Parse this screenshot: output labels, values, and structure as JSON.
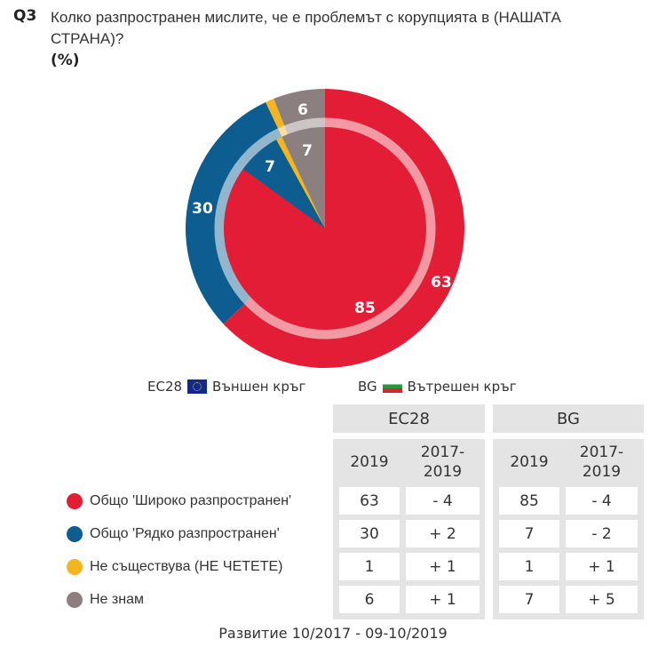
{
  "question": {
    "label": "Q3",
    "text": "Колко разпространен мислите, че е проблемът с корупцията в (НАШАТА СТРАНА)?",
    "unit": "(%)"
  },
  "legend_top": {
    "outer": {
      "code": "ЕС28",
      "label": "Външен кръг",
      "flag": "eu-flag"
    },
    "inner": {
      "code": "BG",
      "label": "Вътрешен кръг",
      "flag": "bg-flag"
    }
  },
  "table": {
    "groups": [
      {
        "name": "ЕС28",
        "cols": [
          "2019",
          "2017-\n2019"
        ]
      },
      {
        "name": "BG",
        "cols": [
          "2019",
          "2017-\n2019"
        ]
      }
    ],
    "rows": [
      {
        "label": "Общо 'Широко разпространен'",
        "color": "#e31d36",
        "ec_2019": "63",
        "ec_change": "- 4",
        "bg_2019": "85",
        "bg_change": "- 4"
      },
      {
        "label": "Общо 'Рядко разпространен'",
        "color": "#0d5d90",
        "ec_2019": "30",
        "ec_change": "+ 2",
        "bg_2019": "7",
        "bg_change": "- 2"
      },
      {
        "label": "Не съществува (НЕ ЧЕТЕТЕ)",
        "color": "#f5b51f",
        "ec_2019": "1",
        "ec_change": "+ 1",
        "bg_2019": "1",
        "bg_change": "+ 1"
      },
      {
        "label": "Не знам",
        "color": "#8c7f80",
        "ec_2019": "6",
        "ec_change": "+ 1",
        "bg_2019": "7",
        "bg_change": "+ 5"
      }
    ]
  },
  "footer": "Развитие 10/2017 - 09-10/2019",
  "chart_data": {
    "type": "pie",
    "title": "Колко разпространен мислите, че е проблемът с корупцията в (НАШАТА СТРАНА)? (%)",
    "categories": [
      "Общо 'Широко разпространен'",
      "Общо 'Рядко разпространен'",
      "Не съществува (НЕ ЧЕТЕТЕ)",
      "Не знам"
    ],
    "colors": [
      "#e31d36",
      "#0d5d90",
      "#f5b51f",
      "#8c7f80"
    ],
    "series": [
      {
        "name": "ЕС28 (Външен кръг)",
        "values": [
          63,
          30,
          1,
          6
        ],
        "labels_shown": [
          "63",
          "30",
          "",
          "6"
        ]
      },
      {
        "name": "BG (Вътрешен кръг)",
        "values": [
          85,
          7,
          1,
          7
        ],
        "labels_shown": [
          "85",
          "7",
          "",
          "7"
        ]
      }
    ],
    "change_2017_2019": {
      "ЕС28": [
        -4,
        2,
        1,
        1
      ],
      "BG": [
        -4,
        -2,
        1,
        5
      ]
    },
    "legend_position": "below",
    "note": "Развитие 10/2017 - 09-10/2019"
  }
}
